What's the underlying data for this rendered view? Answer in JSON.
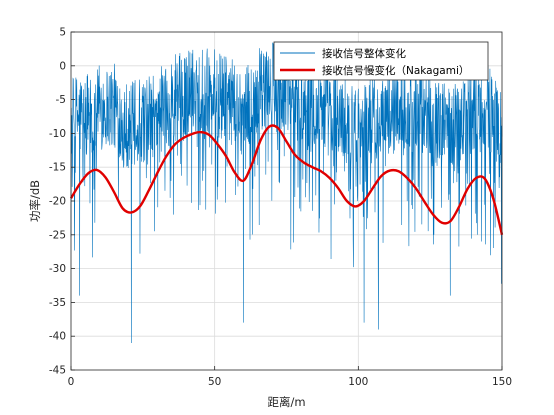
{
  "chart_data": {
    "type": "line",
    "xlabel": "距离/m",
    "ylabel": "功率/dB",
    "xlim": [
      0,
      150
    ],
    "ylim": [
      -45,
      5
    ],
    "xticks": [
      0,
      50,
      100,
      150
    ],
    "yticks": [
      5,
      0,
      -5,
      -10,
      -15,
      -20,
      -25,
      -30,
      -35,
      -40,
      -45
    ],
    "grid": true,
    "legend_position": "top-right",
    "series": [
      {
        "name": "接收信号整体变化",
        "color": "#0072BD",
        "style": "fast-fading",
        "x": [
          0,
          5,
          10,
          15,
          20,
          25,
          30,
          35,
          40,
          45,
          50,
          55,
          60,
          65,
          70,
          75,
          80,
          85,
          90,
          95,
          100,
          105,
          110,
          115,
          120,
          125,
          130,
          135,
          140,
          145,
          150
        ],
        "values": [
          -8,
          -7,
          -6,
          -6,
          -9,
          -8,
          -7,
          -5,
          -4,
          -3,
          -4,
          -5,
          -7,
          -4,
          -3,
          -4,
          -5,
          -6,
          -7,
          -8,
          -9,
          -8,
          -7,
          -6,
          -6,
          -8,
          -9,
          -8,
          -7,
          -6,
          -10
        ],
        "notable_fades": [
          {
            "x": 21,
            "y": -41
          },
          {
            "x": 3,
            "y": -34
          },
          {
            "x": 60,
            "y": -38
          },
          {
            "x": 102,
            "y": -38
          },
          {
            "x": 107,
            "y": -39
          },
          {
            "x": 132,
            "y": -34
          }
        ]
      },
      {
        "name": "接收信号慢变化（Nakagami）",
        "color": "#E00000",
        "style": "smooth",
        "x": [
          0,
          3,
          6,
          9,
          12,
          15,
          18,
          21,
          24,
          27,
          30,
          33,
          36,
          39,
          42,
          45,
          48,
          51,
          54,
          57,
          60,
          63,
          66,
          69,
          72,
          75,
          78,
          81,
          84,
          87,
          90,
          93,
          96,
          99,
          102,
          105,
          108,
          111,
          114,
          117,
          120,
          123,
          126,
          129,
          132,
          135,
          138,
          141,
          144,
          147,
          150
        ],
        "values": [
          -19.6,
          -17.5,
          -15.9,
          -15.4,
          -16.5,
          -18.7,
          -21.1,
          -21.7,
          -20.8,
          -18.5,
          -15.9,
          -13.5,
          -11.7,
          -10.7,
          -10.1,
          -9.8,
          -10.2,
          -11.6,
          -13.4,
          -15.8,
          -17.0,
          -14.5,
          -11.0,
          -9.0,
          -9.2,
          -11.2,
          -13.2,
          -14.3,
          -15.0,
          -15.6,
          -16.6,
          -18.1,
          -20.0,
          -20.8,
          -20.0,
          -18.1,
          -16.3,
          -15.5,
          -15.6,
          -16.6,
          -18.1,
          -20.1,
          -22.0,
          -23.2,
          -23.0,
          -20.9,
          -18.2,
          -16.6,
          -16.7,
          -19.7,
          -25.0
        ]
      }
    ]
  }
}
